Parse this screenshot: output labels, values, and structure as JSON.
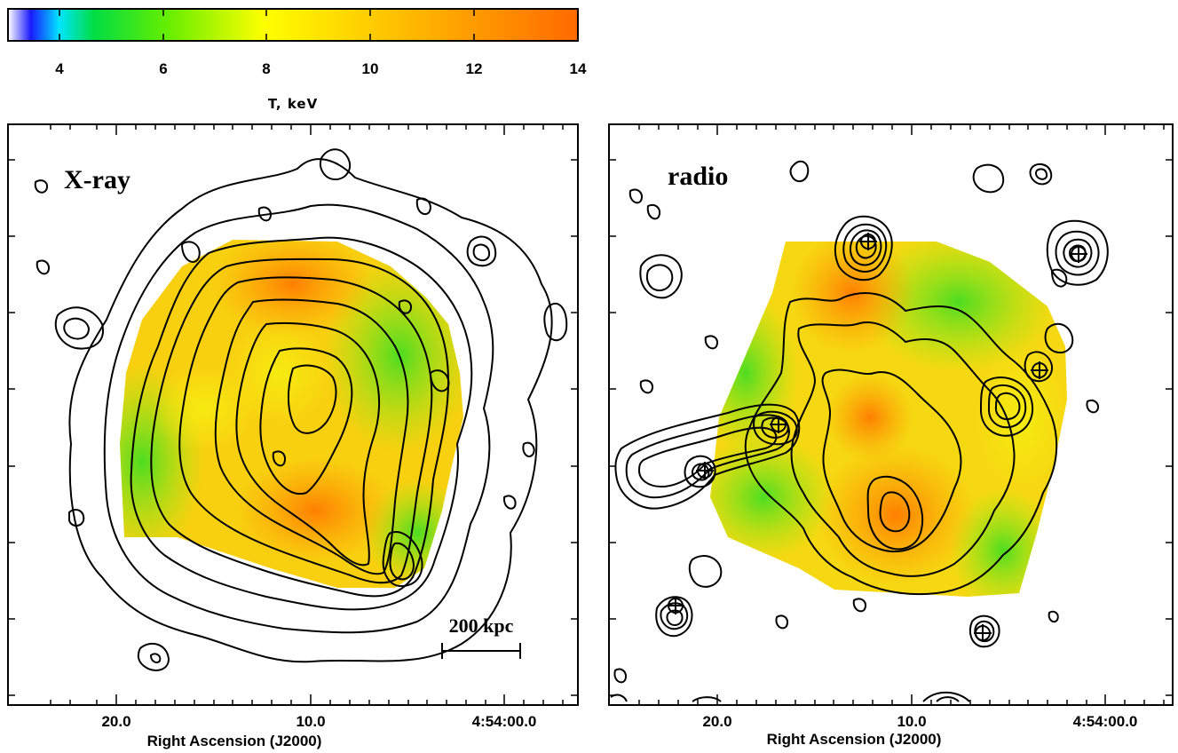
{
  "colorbar": {
    "label": "T, keV",
    "ticks": [
      "4",
      "6",
      "8",
      "10",
      "12",
      "14"
    ],
    "range": [
      3,
      14
    ],
    "stops": [
      "#ffffff",
      "#1a1aff",
      "#00e5ff",
      "#00dd44",
      "#66ee00",
      "#ffff00",
      "#ffc800",
      "#ff9a00",
      "#ff6a00"
    ]
  },
  "panels": [
    {
      "label": "X-ray",
      "x_ticks": [
        "20.0",
        "10.0",
        "4:54:00.0"
      ],
      "x_axis_title": "Right Ascension (J2000)",
      "scale_bar": "200 kpc"
    },
    {
      "label": "radio",
      "x_ticks": [
        "20.0",
        "10.0",
        "4:54:00.0"
      ],
      "x_axis_title": "Right Ascension (J2000)"
    }
  ]
}
